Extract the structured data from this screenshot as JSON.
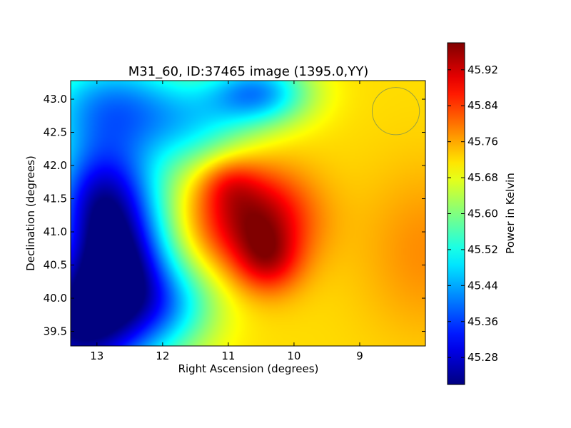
{
  "chart_data": {
    "type": "heatmap",
    "title": "M31_60, ID:37465 image (1395.0,YY)",
    "xlabel": "Right Ascension (degrees)",
    "ylabel": "Declination (degrees)",
    "colorbar_label": "Power in Kelvin",
    "colormap": "jet",
    "x_inverted": true,
    "xlim": [
      13.4,
      8.0
    ],
    "ylim": [
      39.28,
      43.28
    ],
    "x_ticks": [
      13,
      12,
      11,
      10,
      9
    ],
    "x_tick_labels": [
      "13",
      "12",
      "11",
      "10",
      "9"
    ],
    "y_ticks": [
      39.5,
      40.0,
      40.5,
      41.0,
      41.5,
      42.0,
      42.5,
      43.0
    ],
    "y_tick_labels": [
      "39.5",
      "40.0",
      "40.5",
      "41.0",
      "41.5",
      "42.0",
      "42.5",
      "43.0"
    ],
    "color_range": [
      45.22,
      45.98
    ],
    "colorbar_ticks": [
      45.28,
      45.36,
      45.44,
      45.52,
      45.6,
      45.68,
      45.76,
      45.84,
      45.92
    ],
    "colorbar_tick_labels": [
      "45.28",
      "45.36",
      "45.44",
      "45.52",
      "45.60",
      "45.68",
      "45.76",
      "45.84",
      "45.92"
    ],
    "beam_circle": {
      "ra": 8.45,
      "dec": 42.82,
      "radius_deg": 0.36
    },
    "background_level": 45.72,
    "features": [
      {
        "ra": 10.62,
        "dec": 41.2,
        "sigma_ra": 0.62,
        "sigma_dec": 0.52,
        "amp": 0.24
      },
      {
        "ra": 10.4,
        "dec": 40.55,
        "sigma_ra": 0.35,
        "sigma_dec": 0.35,
        "amp": 0.14
      },
      {
        "ra": 11.0,
        "dec": 41.75,
        "sigma_ra": 0.32,
        "sigma_dec": 0.28,
        "amp": 0.08
      },
      {
        "ra": 8.0,
        "dec": 40.7,
        "sigma_ra": 0.7,
        "sigma_dec": 0.9,
        "amp": 0.06
      },
      {
        "ra": 13.25,
        "dec": 39.6,
        "sigma_ra": 0.85,
        "sigma_dec": 0.75,
        "amp": -0.5
      },
      {
        "ra": 12.9,
        "dec": 41.5,
        "sigma_ra": 0.6,
        "sigma_dec": 0.6,
        "amp": -0.4
      },
      {
        "ra": 12.65,
        "dec": 40.55,
        "sigma_ra": 0.55,
        "sigma_dec": 0.55,
        "amp": -0.3
      },
      {
        "ra": 12.75,
        "dec": 42.9,
        "sigma_ra": 0.9,
        "sigma_dec": 0.6,
        "amp": -0.3
      },
      {
        "ra": 10.55,
        "dec": 43.1,
        "sigma_ra": 0.55,
        "sigma_dec": 0.35,
        "amp": -0.28
      },
      {
        "ra": 11.9,
        "dec": 39.9,
        "sigma_ra": 0.55,
        "sigma_dec": 0.45,
        "amp": -0.15
      },
      {
        "ra": 11.45,
        "dec": 42.55,
        "sigma_ra": 0.6,
        "sigma_dec": 0.45,
        "amp": -0.12
      }
    ]
  }
}
